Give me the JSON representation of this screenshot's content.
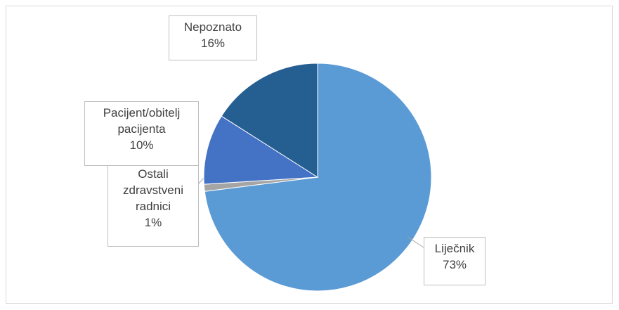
{
  "chart_data": {
    "type": "pie",
    "categories": [
      "Liječnik",
      "Ostali zdravstveni radnici",
      "Pacijent/obitelj pacijenta",
      "Nepoznato"
    ],
    "values": [
      73,
      1,
      10,
      16
    ],
    "value_labels": [
      "73%",
      "1%",
      "10%",
      "16%"
    ],
    "colors": [
      "#5b9bd5",
      "#a5a5a5",
      "#4472c4",
      "#255e91"
    ]
  }
}
